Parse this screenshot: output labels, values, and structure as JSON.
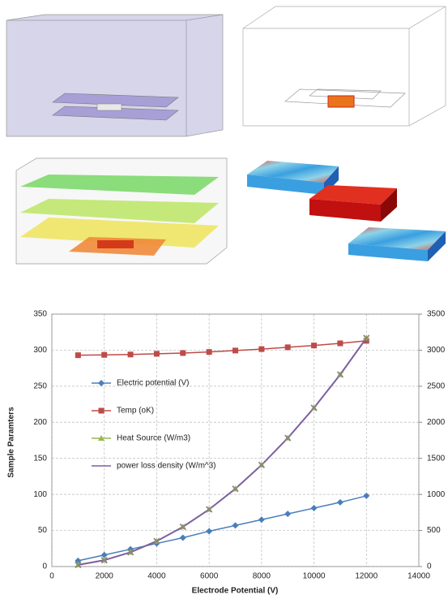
{
  "chart_data": {
    "type": "line",
    "xlabel": "Electrode Potential (V)",
    "ylabel": "Sample Paramters",
    "x": [
      1000,
      2000,
      3000,
      4000,
      5000,
      6000,
      7000,
      8000,
      9000,
      10000,
      11000,
      12000
    ],
    "xlim": [
      0,
      14000
    ],
    "xticks": [
      0,
      2000,
      4000,
      6000,
      8000,
      10000,
      12000,
      14000
    ],
    "ylim": [
      0,
      350
    ],
    "yticks": [
      0,
      50,
      100,
      150,
      200,
      250,
      300,
      350
    ],
    "y2lim": [
      0,
      3500
    ],
    "y2ticks": [
      0,
      500,
      1000,
      1500,
      2000,
      2500,
      3000,
      3500
    ],
    "grid": true,
    "legend": "left",
    "series": [
      {
        "name": "Electric potential (V)",
        "color": "#4a7ebb",
        "marker": "diamond",
        "values": [
          8,
          16,
          24,
          32,
          40,
          49,
          57,
          65,
          73,
          81,
          89,
          98
        ]
      },
      {
        "name": "Temp (oK)",
        "color": "#be4b48",
        "marker": "square",
        "values": [
          293,
          293.5,
          294,
          295,
          296,
          297.5,
          299.5,
          301.5,
          304,
          306.5,
          309.5,
          313
        ]
      },
      {
        "name": "Heat Source (W/m3)",
        "color": "#98b954",
        "marker": "triangle",
        "axis": "y2",
        "values": [
          22,
          88,
          198,
          352,
          550,
          792,
          1078,
          1408,
          1782,
          2200,
          2662,
          3168
        ]
      },
      {
        "name": "power loss density (W/m^3)",
        "color": "#7d60a0",
        "marker": "x",
        "axis": "y2",
        "values": [
          22,
          88,
          198,
          352,
          550,
          792,
          1078,
          1408,
          1782,
          2200,
          2662,
          3168
        ]
      }
    ]
  }
}
